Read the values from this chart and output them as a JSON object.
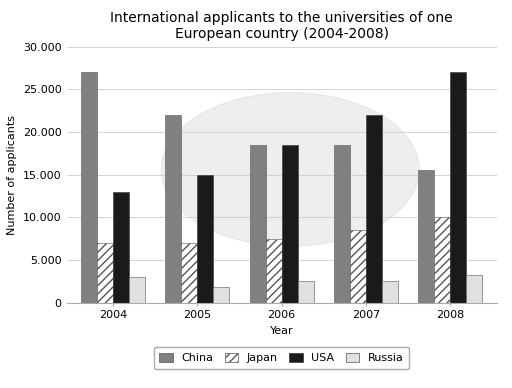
{
  "title": "International applicants to the universities of one\nEuropean country (2004-2008)",
  "xlabel": "Year",
  "ylabel": "Number of applicants",
  "years": [
    2004,
    2005,
    2006,
    2007,
    2008
  ],
  "china": [
    27000,
    22000,
    18500,
    18500,
    15500
  ],
  "japan": [
    7000,
    7000,
    7500,
    8500,
    10000
  ],
  "usa": [
    13000,
    15000,
    18500,
    22000,
    27000
  ],
  "russia": [
    3000,
    1800,
    2500,
    2500,
    3200
  ],
  "ylim": [
    0,
    30000
  ],
  "yticks": [
    0,
    5000,
    10000,
    15000,
    20000,
    25000,
    30000
  ],
  "ytick_labels": [
    "0",
    "5.000",
    "10.000",
    "15.000",
    "20.000",
    "25.000",
    "30.000"
  ],
  "china_color": "#808080",
  "usa_color": "#1a1a1a",
  "russia_color": "#e0e0e0",
  "bar_width": 0.19,
  "background_color": "#ffffff",
  "grid_color": "#cccccc",
  "title_fontsize": 10,
  "axis_label_fontsize": 8,
  "tick_fontsize": 8,
  "legend_fontsize": 8
}
